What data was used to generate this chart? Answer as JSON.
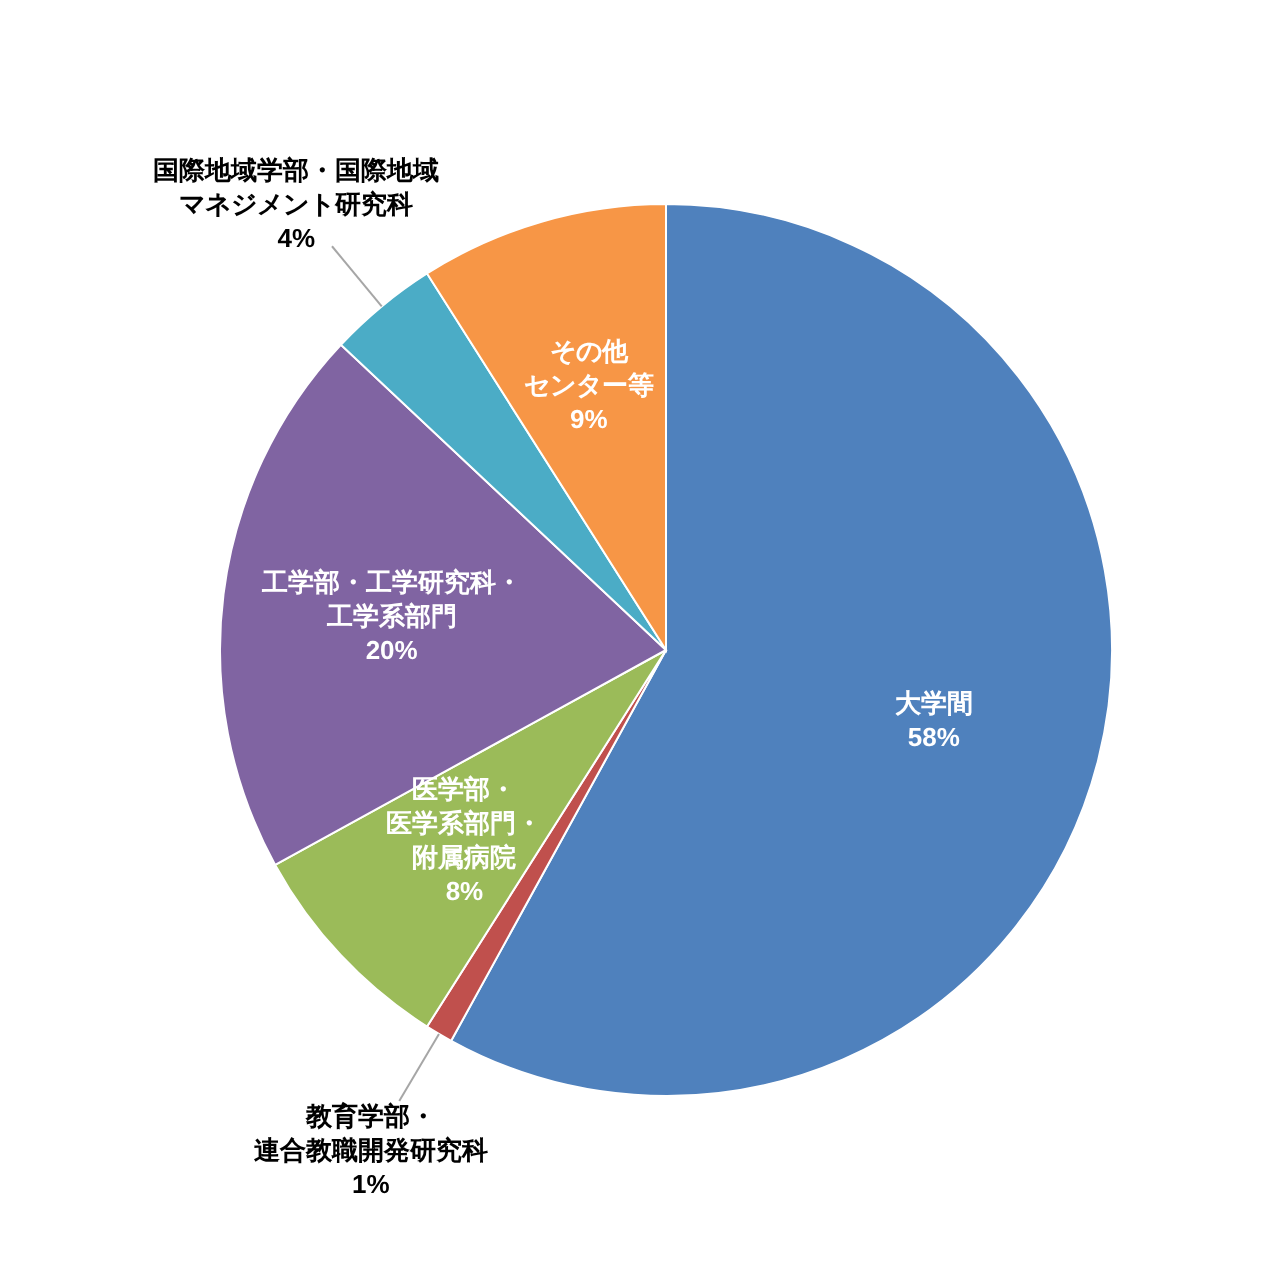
{
  "chart_data": {
    "type": "pie",
    "categories": [
      "大学間",
      "教育学部・連合教職開発研究科",
      "医学部・医学系部門・附属病院",
      "工学部・工学研究科・工学系部門",
      "国際地域学部・国際地域マネジメント研究科",
      "その他センター等"
    ],
    "values": [
      58,
      1,
      8,
      20,
      4,
      9
    ],
    "value_labels": [
      "58%",
      "1%",
      "8%",
      "20%",
      "4%",
      "9%"
    ],
    "colors": [
      "#4f81bd",
      "#c0504d",
      "#9bbb59",
      "#8064a2",
      "#4bacc6",
      "#f79646"
    ]
  }
}
